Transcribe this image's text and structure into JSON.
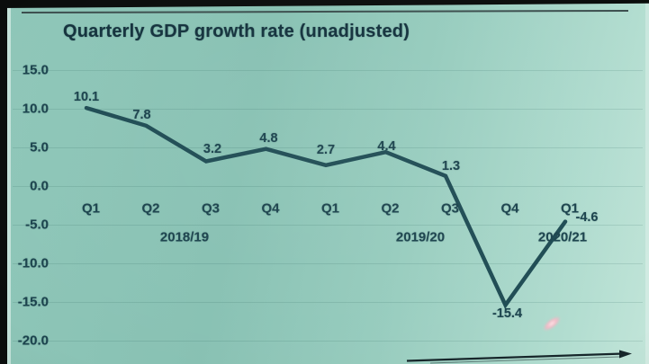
{
  "colors": {
    "background_teal": "#8fc7b9",
    "title_ink": "#14323d",
    "label_ink": "#1b434d",
    "line_color": "#1f4c54",
    "frame_black": "#0a0d0c",
    "laser_pink": "#f2b9c6"
  },
  "slide": {
    "title": "Quarterly GDP growth rate (unadjusted)"
  },
  "chart_data": {
    "type": "line",
    "title": "Quarterly GDP growth rate (unadjusted)",
    "categories": [
      "Q1",
      "Q2",
      "Q3",
      "Q4",
      "Q1",
      "Q2",
      "Q3",
      "Q4",
      "Q1"
    ],
    "series": [
      {
        "name": "Quarterly GDP growth rate (unadjusted)",
        "values": [
          10.1,
          7.8,
          3.2,
          4.8,
          2.7,
          4.4,
          1.3,
          -15.4,
          -4.6
        ]
      }
    ],
    "data_labels": [
      "10.1",
      "7.8",
      "3.2",
      "4.8",
      "2.7",
      "4.4",
      "1.3",
      "-15.4",
      "-4.6"
    ],
    "x_axis": {
      "quarter_row": [
        "Q1",
        "Q2",
        "Q3",
        "Q4",
        "Q1",
        "Q2",
        "Q3",
        "Q4",
        "Q1"
      ],
      "year_row": [
        "2018/19",
        "2019/20",
        "2020/21"
      ]
    },
    "y_axis": {
      "tick_labels": [
        "15.0",
        "10.0",
        "5.0",
        "0.0",
        "-5.0",
        "-10.0",
        "-15.0",
        "-20.0"
      ],
      "tick_values": [
        15,
        10,
        5,
        0,
        -5,
        -10,
        -15,
        -20
      ],
      "min": -20,
      "max": 15
    },
    "grid": "faint horizontal gridlines",
    "legend": "none"
  }
}
